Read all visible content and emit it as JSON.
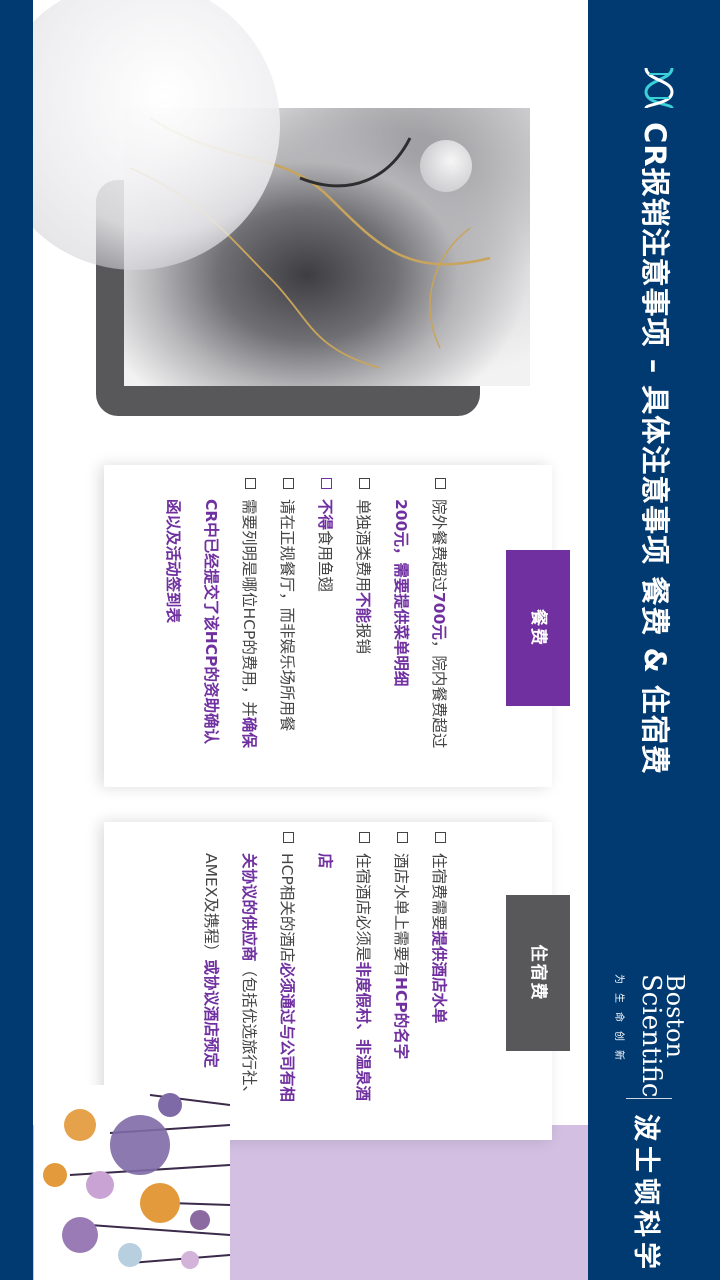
{
  "header": {
    "title": "CR报销注意事项 – 具体注意事项 餐费 & 住宿费",
    "logo_word_1": "Boston",
    "logo_word_2": "Scientific",
    "logo_tagline": "为生命创新",
    "logo_cn": "波士顿科学"
  },
  "meal": {
    "tab_label": "餐费",
    "b1_a": "院外餐费超过",
    "b1_b": "700元",
    "b1_c": "，院内餐费超过",
    "b1_d": "200元，需要提供菜单明细",
    "b2_a": "单独酒类费用",
    "b2_b": "不能",
    "b2_c": "报销",
    "b3_a": "不得",
    "b3_b": "食用鱼翅",
    "b4": "请在正规餐厅，而非娱乐场所用餐",
    "b5_a": "需要列明是哪位HCP的费用，并",
    "b5_b": "确保",
    "b5_c": "CR中已经提交了该HCP的资助确认",
    "b5_d": "函以及活动签到表"
  },
  "hotel": {
    "tab_label": "住宿费",
    "b1_a": "住宿费需要",
    "b1_b": "提供酒店水单",
    "b2_a": "酒店水单上需要有",
    "b2_b": "HCP的名字",
    "b3_a": "住宿酒店必须是",
    "b3_b": "非度假村、非温泉酒",
    "b3_c": "店",
    "b4_a": "HCP相关的酒店",
    "b4_b": "必须通过与公司有相",
    "b4_c": "关协议的供应商",
    "b4_d": "（包括优选旅行社、",
    "b4_e": "AMEX及携程）",
    "b4_f": "或协议酒店预定"
  },
  "colors": {
    "navy": "#003a70",
    "purple": "#7030a0",
    "gray_tab": "#58585a",
    "lilac": "#d2bfe2"
  }
}
